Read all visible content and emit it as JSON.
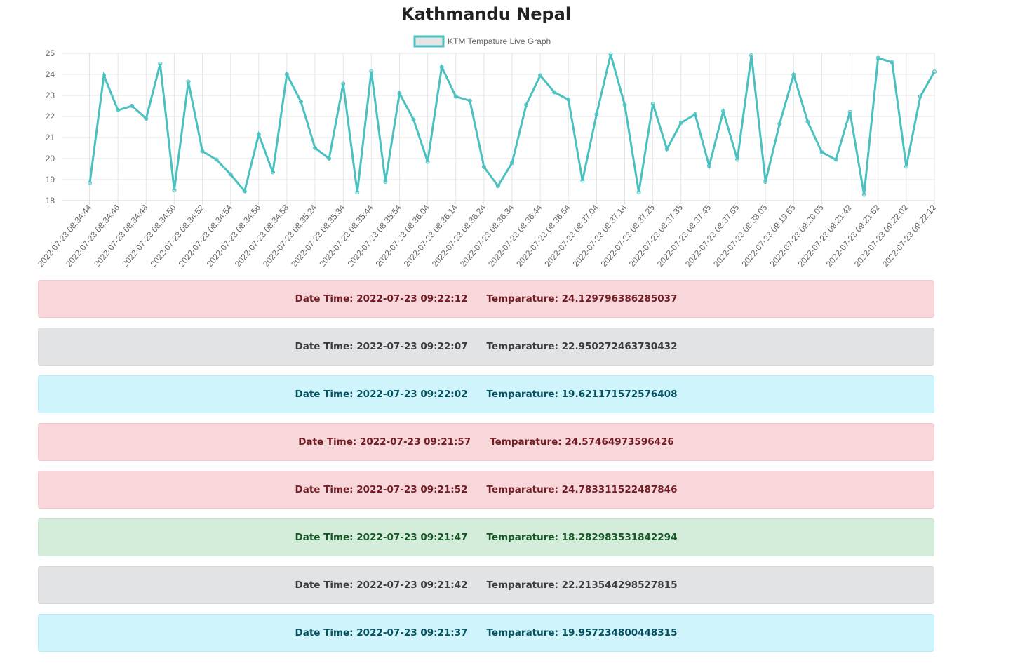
{
  "page": {
    "title": "Kathmandu Nepal"
  },
  "colors": {
    "line": "#4bc0c0",
    "grid": "#e6e6e6",
    "tick_text": "#666666"
  },
  "chart_data": {
    "type": "line",
    "title": "",
    "legend": "KTM Tempature Live Graph",
    "legend_position": "top",
    "xlabel": "",
    "ylabel": "",
    "ylim": [
      18,
      25
    ],
    "yticks": [
      "25",
      "24",
      "23",
      "22",
      "21",
      "20",
      "19",
      "18"
    ],
    "x_tick_labels": [
      "2022-07-23 08:34:44",
      "2022-07-23 08:34:46",
      "2022-07-23 08:34:48",
      "2022-07-23 08:34:50",
      "2022-07-23 08:34:52",
      "2022-07-23 08:34:54",
      "2022-07-23 08:34:56",
      "2022-07-23 08:34:58",
      "2022-07-23 08:35:24",
      "2022-07-23 08:35:34",
      "2022-07-23 08:35:44",
      "2022-07-23 08:35:54",
      "2022-07-23 08:36:04",
      "2022-07-23 08:36:14",
      "2022-07-23 08:36:24",
      "2022-07-23 08:36:34",
      "2022-07-23 08:36:44",
      "2022-07-23 08:36:54",
      "2022-07-23 08:37:04",
      "2022-07-23 08:37:14",
      "2022-07-23 08:37:25",
      "2022-07-23 08:37:35",
      "2022-07-23 08:37:45",
      "2022-07-23 08:37:55",
      "2022-07-23 08:38:05",
      "2022-07-23 09:19:55",
      "2022-07-23 09:20:05",
      "2022-07-23 09:21:42",
      "2022-07-23 09:21:52",
      "2022-07-23 09:22:02",
      "2022-07-23 09:22:12"
    ],
    "series": [
      {
        "name": "KTM Tempature Live Graph",
        "values": [
          18.85,
          23.95,
          22.3,
          22.5,
          21.9,
          24.5,
          18.5,
          23.65,
          20.35,
          19.95,
          19.25,
          18.45,
          21.15,
          19.35,
          24.0,
          22.7,
          20.5,
          20.0,
          23.55,
          18.4,
          24.15,
          18.9,
          23.1,
          21.85,
          19.85,
          24.35,
          22.95,
          22.75,
          19.6,
          18.7,
          19.8,
          22.55,
          23.95,
          23.15,
          22.8,
          18.95,
          22.1,
          24.95,
          22.55,
          18.4,
          22.6,
          20.45,
          21.7,
          22.1,
          19.65,
          22.25,
          19.95,
          24.9,
          18.9,
          21.65,
          23.98,
          21.75,
          20.3,
          19.95,
          22.21,
          18.28,
          24.78,
          24.57,
          19.62,
          22.95,
          24.13
        ]
      }
    ]
  },
  "readings": [
    {
      "style": "alert-danger",
      "datetime": "Date Time: 2022-07-23 09:22:12",
      "temperature": "Temparature: 24.129796386285037"
    },
    {
      "style": "alert-secondary",
      "datetime": "Date Time: 2022-07-23 09:22:07",
      "temperature": "Temparature: 22.950272463730432"
    },
    {
      "style": "alert-info",
      "datetime": "Date Time: 2022-07-23 09:22:02",
      "temperature": "Temparature: 19.621171572576408"
    },
    {
      "style": "alert-danger",
      "datetime": "Date Time: 2022-07-23 09:21:57",
      "temperature": "Temparature: 24.57464973596426"
    },
    {
      "style": "alert-danger",
      "datetime": "Date Time: 2022-07-23 09:21:52",
      "temperature": "Temparature: 24.783311522487846"
    },
    {
      "style": "alert-success",
      "datetime": "Date Time: 2022-07-23 09:21:47",
      "temperature": "Temparature: 18.282983531842294"
    },
    {
      "style": "alert-secondary",
      "datetime": "Date Time: 2022-07-23 09:21:42",
      "temperature": "Temparature: 22.213544298527815"
    },
    {
      "style": "alert-info",
      "datetime": "Date Time: 2022-07-23 09:21:37",
      "temperature": "Temparature: 19.957234800448315"
    }
  ]
}
